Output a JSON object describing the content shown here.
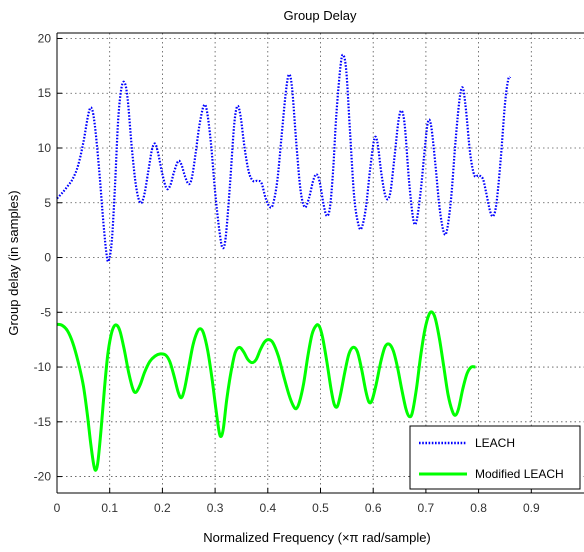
{
  "chart_data": {
    "type": "line",
    "title": "Group Delay",
    "xlabel": "Normalized Frequency (×π rad/sample)",
    "ylabel": "Group delay (in samples)",
    "xlim": [
      0,
      1
    ],
    "ylim": [
      -21.5,
      20.5
    ],
    "x_ticks": [
      "0",
      "0.1",
      "0.2",
      "0.3",
      "0.4",
      "0.5",
      "0.6",
      "0.7",
      "0.8",
      "0.9"
    ],
    "y_ticks": [
      "20",
      "15",
      "10",
      "5",
      "0",
      "-5",
      "-10",
      "-15",
      "-20"
    ],
    "grid": true,
    "legend_position": "bottom-right",
    "series": [
      {
        "name": "LEACH",
        "color": "#0000ff",
        "style": "dotted",
        "points": [
          [
            0.0,
            5.4
          ],
          [
            0.01,
            5.9
          ],
          [
            0.02,
            6.5
          ],
          [
            0.03,
            7.2
          ],
          [
            0.04,
            8.4
          ],
          [
            0.05,
            10.5
          ],
          [
            0.06,
            13.2
          ],
          [
            0.066,
            13.6
          ],
          [
            0.072,
            12.0
          ],
          [
            0.08,
            8.0
          ],
          [
            0.088,
            3.2
          ],
          [
            0.094,
            0.3
          ],
          [
            0.098,
            -0.3
          ],
          [
            0.104,
            1.5
          ],
          [
            0.11,
            6.5
          ],
          [
            0.116,
            12.5
          ],
          [
            0.122,
            15.4
          ],
          [
            0.128,
            16.0
          ],
          [
            0.134,
            14.5
          ],
          [
            0.142,
            10.0
          ],
          [
            0.15,
            6.5
          ],
          [
            0.158,
            5.0
          ],
          [
            0.165,
            5.6
          ],
          [
            0.173,
            7.8
          ],
          [
            0.18,
            9.8
          ],
          [
            0.186,
            10.4
          ],
          [
            0.192,
            9.5
          ],
          [
            0.2,
            7.6
          ],
          [
            0.208,
            6.3
          ],
          [
            0.215,
            6.6
          ],
          [
            0.222,
            7.8
          ],
          [
            0.23,
            8.8
          ],
          [
            0.236,
            8.5
          ],
          [
            0.243,
            7.4
          ],
          [
            0.25,
            6.7
          ],
          [
            0.256,
            7.3
          ],
          [
            0.263,
            9.5
          ],
          [
            0.27,
            12.0
          ],
          [
            0.278,
            13.8
          ],
          [
            0.284,
            13.5
          ],
          [
            0.292,
            10.5
          ],
          [
            0.3,
            6.0
          ],
          [
            0.308,
            2.5
          ],
          [
            0.314,
            0.9
          ],
          [
            0.32,
            1.8
          ],
          [
            0.328,
            6.5
          ],
          [
            0.336,
            12.0
          ],
          [
            0.342,
            13.8
          ],
          [
            0.348,
            13.0
          ],
          [
            0.356,
            10.0
          ],
          [
            0.364,
            7.8
          ],
          [
            0.372,
            7.0
          ],
          [
            0.38,
            7.0
          ],
          [
            0.388,
            6.8
          ],
          [
            0.396,
            5.4
          ],
          [
            0.404,
            4.6
          ],
          [
            0.41,
            4.9
          ],
          [
            0.418,
            7.0
          ],
          [
            0.426,
            11.0
          ],
          [
            0.434,
            15.0
          ],
          [
            0.44,
            16.7
          ],
          [
            0.446,
            15.5
          ],
          [
            0.454,
            10.5
          ],
          [
            0.462,
            6.2
          ],
          [
            0.47,
            4.6
          ],
          [
            0.478,
            5.4
          ],
          [
            0.486,
            7.0
          ],
          [
            0.492,
            7.6
          ],
          [
            0.498,
            7.0
          ],
          [
            0.506,
            4.8
          ],
          [
            0.512,
            3.8
          ],
          [
            0.518,
            4.6
          ],
          [
            0.524,
            8.0
          ],
          [
            0.53,
            13.0
          ],
          [
            0.538,
            17.5
          ],
          [
            0.543,
            18.5
          ],
          [
            0.549,
            17.0
          ],
          [
            0.556,
            11.5
          ],
          [
            0.564,
            5.5
          ],
          [
            0.572,
            3.0
          ],
          [
            0.578,
            2.7
          ],
          [
            0.586,
            4.5
          ],
          [
            0.594,
            8.0
          ],
          [
            0.602,
            10.8
          ],
          [
            0.608,
            10.5
          ],
          [
            0.616,
            7.5
          ],
          [
            0.624,
            5.5
          ],
          [
            0.632,
            5.8
          ],
          [
            0.64,
            9.0
          ],
          [
            0.648,
            12.5
          ],
          [
            0.654,
            13.4
          ],
          [
            0.66,
            12.0
          ],
          [
            0.668,
            7.0
          ],
          [
            0.676,
            3.5
          ],
          [
            0.682,
            3.3
          ],
          [
            0.69,
            6.0
          ],
          [
            0.698,
            10.0
          ],
          [
            0.704,
            12.4
          ],
          [
            0.71,
            12.0
          ],
          [
            0.718,
            8.5
          ],
          [
            0.726,
            4.5
          ],
          [
            0.734,
            2.3
          ],
          [
            0.74,
            2.5
          ],
          [
            0.748,
            5.5
          ],
          [
            0.756,
            10.5
          ],
          [
            0.764,
            14.5
          ],
          [
            0.77,
            15.5
          ],
          [
            0.776,
            13.5
          ],
          [
            0.784,
            9.5
          ],
          [
            0.792,
            7.5
          ],
          [
            0.8,
            7.5
          ],
          [
            0.808,
            7.2
          ],
          [
            0.814,
            6.0
          ],
          [
            0.822,
            4.2
          ],
          [
            0.828,
            3.8
          ],
          [
            0.834,
            5.0
          ],
          [
            0.842,
            9.0
          ],
          [
            0.85,
            14.0
          ],
          [
            0.856,
            16.2
          ],
          [
            0.86,
            16.5
          ]
        ]
      },
      {
        "name": "Modified LEACH",
        "color": "#00ff00",
        "style": "solid",
        "points": [
          [
            0.0,
            -6.1
          ],
          [
            0.01,
            -6.2
          ],
          [
            0.02,
            -6.7
          ],
          [
            0.03,
            -7.8
          ],
          [
            0.04,
            -9.5
          ],
          [
            0.05,
            -11.7
          ],
          [
            0.058,
            -14.5
          ],
          [
            0.064,
            -17.0
          ],
          [
            0.07,
            -19.0
          ],
          [
            0.074,
            -19.4
          ],
          [
            0.078,
            -18.5
          ],
          [
            0.084,
            -15.5
          ],
          [
            0.09,
            -12.0
          ],
          [
            0.096,
            -9.0
          ],
          [
            0.102,
            -7.2
          ],
          [
            0.108,
            -6.3
          ],
          [
            0.114,
            -6.2
          ],
          [
            0.12,
            -6.8
          ],
          [
            0.128,
            -8.5
          ],
          [
            0.136,
            -10.5
          ],
          [
            0.144,
            -12.0
          ],
          [
            0.15,
            -12.3
          ],
          [
            0.158,
            -11.6
          ],
          [
            0.166,
            -10.5
          ],
          [
            0.176,
            -9.5
          ],
          [
            0.186,
            -9.0
          ],
          [
            0.196,
            -8.8
          ],
          [
            0.206,
            -8.9
          ],
          [
            0.214,
            -9.5
          ],
          [
            0.222,
            -10.8
          ],
          [
            0.23,
            -12.3
          ],
          [
            0.236,
            -12.8
          ],
          [
            0.242,
            -12.0
          ],
          [
            0.25,
            -10.0
          ],
          [
            0.258,
            -8.0
          ],
          [
            0.266,
            -6.8
          ],
          [
            0.272,
            -6.5
          ],
          [
            0.278,
            -6.9
          ],
          [
            0.286,
            -8.5
          ],
          [
            0.294,
            -11.0
          ],
          [
            0.302,
            -14.0
          ],
          [
            0.308,
            -16.0
          ],
          [
            0.312,
            -16.3
          ],
          [
            0.316,
            -15.5
          ],
          [
            0.322,
            -13.0
          ],
          [
            0.33,
            -10.5
          ],
          [
            0.338,
            -8.7
          ],
          [
            0.346,
            -8.2
          ],
          [
            0.354,
            -8.6
          ],
          [
            0.362,
            -9.3
          ],
          [
            0.37,
            -9.6
          ],
          [
            0.378,
            -9.3
          ],
          [
            0.386,
            -8.4
          ],
          [
            0.394,
            -7.7
          ],
          [
            0.402,
            -7.5
          ],
          [
            0.41,
            -7.8
          ],
          [
            0.42,
            -9.0
          ],
          [
            0.43,
            -10.8
          ],
          [
            0.44,
            -12.5
          ],
          [
            0.448,
            -13.5
          ],
          [
            0.454,
            -13.8
          ],
          [
            0.46,
            -13.2
          ],
          [
            0.468,
            -11.5
          ],
          [
            0.476,
            -9.0
          ],
          [
            0.484,
            -7.0
          ],
          [
            0.492,
            -6.2
          ],
          [
            0.498,
            -6.3
          ],
          [
            0.504,
            -7.3
          ],
          [
            0.512,
            -9.5
          ],
          [
            0.52,
            -12.0
          ],
          [
            0.526,
            -13.4
          ],
          [
            0.532,
            -13.6
          ],
          [
            0.538,
            -12.5
          ],
          [
            0.546,
            -10.5
          ],
          [
            0.554,
            -8.8
          ],
          [
            0.562,
            -8.2
          ],
          [
            0.57,
            -8.6
          ],
          [
            0.578,
            -10.2
          ],
          [
            0.586,
            -12.2
          ],
          [
            0.592,
            -13.2
          ],
          [
            0.598,
            -13.0
          ],
          [
            0.606,
            -11.5
          ],
          [
            0.614,
            -9.6
          ],
          [
            0.622,
            -8.2
          ],
          [
            0.63,
            -7.9
          ],
          [
            0.638,
            -8.5
          ],
          [
            0.646,
            -10.0
          ],
          [
            0.654,
            -12.0
          ],
          [
            0.662,
            -13.8
          ],
          [
            0.668,
            -14.5
          ],
          [
            0.674,
            -14.2
          ],
          [
            0.682,
            -12.0
          ],
          [
            0.69,
            -9.0
          ],
          [
            0.698,
            -6.6
          ],
          [
            0.706,
            -5.2
          ],
          [
            0.712,
            -5.0
          ],
          [
            0.718,
            -5.6
          ],
          [
            0.726,
            -7.5
          ],
          [
            0.734,
            -10.0
          ],
          [
            0.742,
            -12.5
          ],
          [
            0.75,
            -14.0
          ],
          [
            0.756,
            -14.4
          ],
          [
            0.762,
            -13.8
          ],
          [
            0.77,
            -12.0
          ],
          [
            0.778,
            -10.6
          ],
          [
            0.786,
            -10.0
          ],
          [
            0.794,
            -10.0
          ]
        ]
      }
    ]
  }
}
